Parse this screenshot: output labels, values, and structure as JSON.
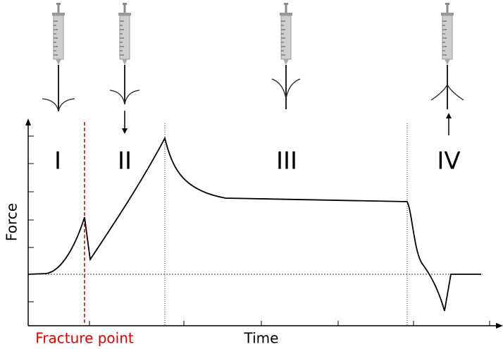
{
  "labels": {
    "phases": [
      "I",
      "II",
      "III",
      "IV"
    ],
    "y_axis": "Force",
    "x_axis": "Time",
    "annotation": "Fracture point"
  }
}
